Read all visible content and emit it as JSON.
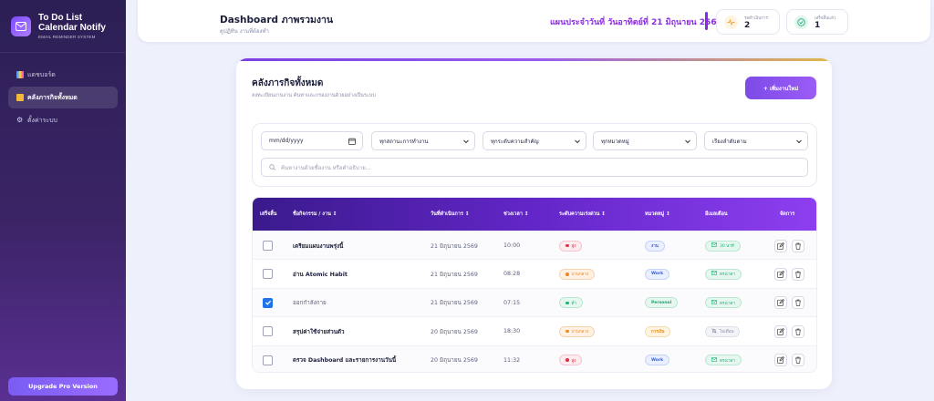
{
  "sidebar": {
    "title": "To Do List Calendar Notify",
    "subtitle": "EMAIL REMINDER SYSTEM",
    "items": [
      {
        "label": "แดชบอร์ด",
        "icon": "chart-icon",
        "active": false
      },
      {
        "label": "คลังภารกิจทั้งหมด",
        "icon": "folder-icon",
        "active": true
      },
      {
        "label": "ตั้งค่าระบบ",
        "icon": "gear-icon",
        "active": false
      }
    ],
    "upgrade_label": "Upgrade Pro Version"
  },
  "header": {
    "title": "Dashboard ภาพรวมงาน",
    "subtitle": "ดูปฏิทิน งานที่ต้องทำ",
    "plan_text": "แผนประจำวันที่ วันอาทิตย์ที่ 21 มิถุนายน 2569",
    "stats": [
      {
        "label": "รอดำเนินการ",
        "value": "2",
        "icon": "activity-icon",
        "color": "#f2a23a"
      },
      {
        "label": "เสร็จสิ้นแล้ว",
        "value": "1",
        "icon": "check-circle-icon",
        "color": "#1fb37a"
      }
    ]
  },
  "main": {
    "title": "คลังภารกิจทั้งหมด",
    "subtitle": "ลงทะเบียนงานงาน ค้นหาและกรองงานด้วยอย่างเป็นระบบ",
    "add_label": "+ เพิ่มงานใหม่",
    "filters": {
      "date_placeholder": "mm/dd/yyyy",
      "status": "ทุกสถานะการทำงาน",
      "priority": "ทุกระดับความสำคัญ",
      "category": "ทุกหมวดหมู่",
      "sort": "เรียงลำดับตาม"
    },
    "search_placeholder": "ค้นหางานด้วยชื่องาน หรือคำอธิบาย..."
  },
  "table": {
    "columns": [
      "เสร็จสิ้น",
      "ชื่อกิจกรรม / งาน ↕",
      "วันที่ดำเนินการ ↕",
      "ช่วงเวลา ↕",
      "ระดับความเร่งด่วน ↕",
      "หมวดหมู่ ↕",
      "อีเมลเตือน",
      "จัดการ"
    ],
    "rows": [
      {
        "done": false,
        "name": "เตรียมแผนงานพรุ่งนี้",
        "date": "21 มิถุนายน 2569",
        "time": "10:00",
        "priority": "สูง",
        "category": "งาน",
        "reminder": "30 นาที",
        "reminder_on": true
      },
      {
        "done": false,
        "name": "อ่าน Atomic Habit",
        "date": "21 มิถุนายน 2569",
        "time": "08:28",
        "priority": "ปานกลาง",
        "category": "Work",
        "reminder": "ตรงเวลา",
        "reminder_on": true
      },
      {
        "done": true,
        "name": "ออกกำลังกาย",
        "date": "21 มิถุนายน 2569",
        "time": "07:15",
        "priority": "ต่ำ",
        "category": "Personal",
        "reminder": "ตรงเวลา",
        "reminder_on": true
      },
      {
        "done": false,
        "name": "สรุปค่าใช้จ่ายส่วนตัว",
        "date": "20 มิถุนายน 2569",
        "time": "18:30",
        "priority": "ปานกลาง",
        "category": "การเงิน",
        "reminder": "ไม่เตือน",
        "reminder_on": false
      },
      {
        "done": false,
        "name": "ตรวจ Dashboard และรายการงานวันนี้",
        "date": "20 มิถุนายน 2569",
        "time": "11:32",
        "priority": "สูง",
        "category": "Work",
        "reminder": "ตรงเวลา",
        "reminder_on": true
      }
    ]
  },
  "colors": {
    "accent": "#7c4be8",
    "priority_high": "#e0304a",
    "priority_mid": "#f08a24",
    "priority_low": "#1fb37a",
    "reminder_on": "#1fb37a"
  }
}
